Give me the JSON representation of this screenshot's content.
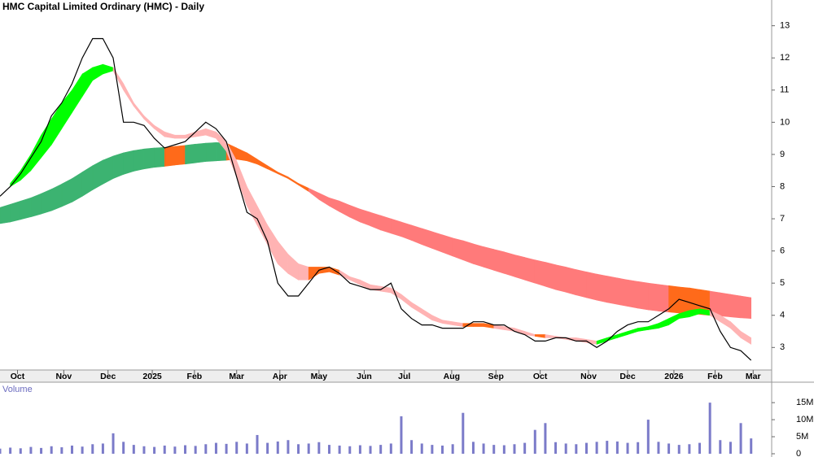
{
  "chart_data": {
    "type": "stock",
    "title": "HMC Capital Limited Ordinary (HMC) - Daily",
    "x": [
      0,
      1,
      2,
      3,
      4,
      5,
      6,
      7,
      8,
      9,
      10,
      11,
      12,
      13,
      14,
      15,
      16,
      17,
      18,
      19,
      20,
      21,
      22,
      23,
      24,
      25,
      26,
      27,
      28,
      29,
      30,
      31,
      32,
      33,
      34,
      35,
      36,
      37,
      38,
      39,
      40,
      41,
      42,
      43,
      44,
      45,
      46,
      47,
      48,
      49,
      50,
      51,
      52,
      53,
      54,
      55,
      56,
      57,
      58,
      59,
      60,
      61,
      62,
      63,
      64,
      65,
      66,
      67,
      68,
      69,
      70,
      71,
      72,
      73
    ],
    "xlim": [
      0,
      75
    ],
    "xticks": [
      {
        "value": 1.7,
        "label": "Oct"
      },
      {
        "value": 6.2,
        "label": "Nov"
      },
      {
        "value": 10.5,
        "label": "Dec"
      },
      {
        "value": 14.8,
        "label": "2025"
      },
      {
        "value": 18.9,
        "label": "Feb"
      },
      {
        "value": 23.0,
        "label": "Mar"
      },
      {
        "value": 27.2,
        "label": "Apr"
      },
      {
        "value": 31.0,
        "label": "May"
      },
      {
        "value": 35.4,
        "label": "Jun"
      },
      {
        "value": 39.3,
        "label": "Jul"
      },
      {
        "value": 43.9,
        "label": "Aug"
      },
      {
        "value": 48.2,
        "label": "Sep"
      },
      {
        "value": 52.5,
        "label": "Oct"
      },
      {
        "value": 57.2,
        "label": "Nov"
      },
      {
        "value": 61.0,
        "label": "Dec"
      },
      {
        "value": 65.5,
        "label": "2026"
      },
      {
        "value": 69.5,
        "label": "Feb"
      },
      {
        "value": 73.2,
        "label": "Mar"
      }
    ],
    "ylim": [
      2.3,
      13.8
    ],
    "yticks": [
      3,
      4,
      5,
      6,
      7,
      8,
      9,
      10,
      11,
      12,
      13
    ],
    "close": {
      "color": "#000000",
      "values": [
        7.7,
        8.0,
        8.4,
        8.9,
        9.4,
        10.2,
        10.6,
        11.2,
        12.0,
        12.6,
        12.6,
        12.0,
        10.0,
        10.0,
        9.9,
        9.5,
        9.2,
        9.3,
        9.4,
        9.7,
        10.0,
        9.8,
        9.4,
        8.3,
        7.2,
        7.0,
        6.3,
        5.0,
        4.6,
        4.6,
        5.0,
        5.4,
        5.5,
        5.3,
        5.0,
        4.9,
        4.8,
        4.8,
        5.0,
        4.2,
        3.9,
        3.7,
        3.7,
        3.6,
        3.6,
        3.6,
        3.8,
        3.8,
        3.7,
        3.7,
        3.5,
        3.4,
        3.2,
        3.2,
        3.3,
        3.3,
        3.2,
        3.2,
        3.0,
        3.2,
        3.5,
        3.7,
        3.8,
        3.8,
        4.0,
        4.2,
        4.5,
        4.4,
        4.3,
        4.2,
        3.5,
        3.0,
        2.9,
        2.6
      ]
    },
    "bands": [
      {
        "upper": [
          7.35,
          7.45,
          7.55,
          7.65,
          7.78,
          7.92,
          8.08,
          8.25,
          8.45,
          8.65,
          8.82,
          8.95,
          9.05,
          9.12,
          9.17,
          9.2,
          9.22,
          9.25,
          9.28,
          9.32,
          9.35,
          9.37,
          9.35,
          9.2,
          9.05,
          8.85,
          8.65,
          8.45,
          8.3,
          8.1,
          7.95,
          7.8,
          7.65,
          7.55,
          7.42,
          7.3,
          7.2,
          7.1,
          7.0,
          6.9,
          6.8,
          6.7,
          6.6,
          6.5,
          6.4,
          6.32,
          6.22,
          6.13,
          6.05,
          5.97,
          5.88,
          5.8,
          5.72,
          5.65,
          5.57,
          5.5,
          5.42,
          5.35,
          5.28,
          5.22,
          5.16,
          5.1,
          5.05,
          5.0,
          4.96,
          4.92,
          4.88,
          4.85,
          4.8,
          4.75,
          4.7,
          4.65,
          4.6,
          4.55
        ],
        "lower": [
          6.85,
          6.9,
          6.98,
          7.06,
          7.15,
          7.25,
          7.38,
          7.52,
          7.7,
          7.9,
          8.08,
          8.25,
          8.38,
          8.48,
          8.55,
          8.6,
          8.63,
          8.67,
          8.7,
          8.74,
          8.78,
          8.8,
          8.82,
          8.85,
          8.8,
          8.7,
          8.55,
          8.4,
          8.25,
          8.05,
          7.85,
          7.6,
          7.4,
          7.22,
          7.05,
          6.9,
          6.78,
          6.65,
          6.55,
          6.45,
          6.33,
          6.2,
          6.08,
          5.96,
          5.84,
          5.72,
          5.6,
          5.5,
          5.4,
          5.3,
          5.2,
          5.1,
          5.0,
          4.9,
          4.8,
          4.72,
          4.63,
          4.55,
          4.47,
          4.4,
          4.34,
          4.28,
          4.22,
          4.17,
          4.13,
          4.1,
          4.07,
          4.05,
          4.03,
          4.0,
          3.98,
          3.95,
          3.92,
          3.9
        ],
        "colors": [
          "#3cb371",
          "#3cb371",
          "#3cb371",
          "#3cb371",
          "#3cb371",
          "#3cb371",
          "#3cb371",
          "#3cb371",
          "#3cb371",
          "#3cb371",
          "#3cb371",
          "#3cb371",
          "#3cb371",
          "#3cb371",
          "#3cb371",
          "#3cb371",
          "#ff6a1a",
          "#ff6a1a",
          "#3cb371",
          "#3cb371",
          "#3cb371",
          "#3cb371",
          "#ff6a1a",
          "#ff6a1a",
          "#ff6a1a",
          "#ff6a1a",
          "#ff6a1a",
          "#ff6a1a",
          "#ff6a1a",
          "#ff6a1a",
          "#ff7a7a",
          "#ff7a7a",
          "#ff7a7a",
          "#ff7a7a",
          "#ff7a7a",
          "#ff7a7a",
          "#ff7a7a",
          "#ff7a7a",
          "#ff7a7a",
          "#ff7a7a",
          "#ff7a7a",
          "#ff7a7a",
          "#ff7a7a",
          "#ff7a7a",
          "#ff7a7a",
          "#ff7a7a",
          "#ff7a7a",
          "#ff7a7a",
          "#ff7a7a",
          "#ff7a7a",
          "#ff7a7a",
          "#ff7a7a",
          "#ff7a7a",
          "#ff7a7a",
          "#ff7a7a",
          "#ff7a7a",
          "#ff7a7a",
          "#ff7a7a",
          "#ff7a7a",
          "#ff7a7a",
          "#ff7a7a",
          "#ff7a7a",
          "#ff7a7a",
          "#ff7a7a",
          "#ff7a7a",
          "#ff6a1a",
          "#ff6a1a",
          "#ff6a1a",
          "#ff6a1a",
          "#ff7a7a",
          "#ff7a7a",
          "#ff7a7a",
          "#ff7a7a",
          "#ff7a7a"
        ]
      },
      {
        "upper": [
          null,
          8.1,
          8.5,
          9.0,
          9.6,
          10.1,
          10.6,
          11.0,
          11.5,
          11.7,
          11.8,
          11.7,
          11.2,
          10.6,
          10.2,
          9.9,
          9.7,
          9.6,
          9.6,
          9.7,
          9.8,
          9.7,
          9.4,
          8.8,
          8.0,
          7.4,
          6.8,
          6.3,
          5.9,
          5.6,
          5.5,
          5.5,
          5.5,
          5.4,
          5.2,
          5.1,
          4.95,
          4.9,
          4.85,
          4.65,
          4.4,
          4.2,
          4.0,
          3.85,
          3.8,
          3.75,
          3.75,
          3.75,
          3.7,
          3.65,
          3.6,
          3.5,
          3.4,
          3.4,
          3.35,
          3.3,
          3.3,
          3.25,
          3.2,
          3.3,
          3.4,
          3.5,
          3.6,
          3.65,
          3.75,
          3.9,
          4.05,
          4.15,
          4.2,
          4.15,
          4.0,
          3.8,
          3.5,
          3.3
        ],
        "lower": [
          null,
          8.0,
          8.2,
          8.5,
          8.9,
          9.3,
          9.8,
          10.3,
          10.8,
          11.3,
          11.5,
          11.6,
          11.0,
          10.5,
          10.1,
          9.8,
          9.55,
          9.5,
          9.5,
          9.55,
          9.6,
          9.5,
          9.1,
          8.3,
          7.4,
          6.8,
          6.2,
          5.6,
          5.3,
          5.1,
          5.1,
          5.3,
          5.35,
          5.25,
          5.1,
          4.95,
          4.8,
          4.75,
          4.7,
          4.5,
          4.25,
          4.05,
          3.85,
          3.75,
          3.7,
          3.65,
          3.65,
          3.65,
          3.6,
          3.55,
          3.5,
          3.4,
          3.35,
          3.3,
          3.3,
          3.25,
          3.2,
          3.15,
          3.1,
          3.2,
          3.3,
          3.4,
          3.5,
          3.55,
          3.6,
          3.7,
          3.9,
          3.95,
          4.05,
          4.0,
          3.8,
          3.6,
          3.3,
          3.1
        ],
        "colors": [
          "#00ff00",
          "#00ff00",
          "#00ff00",
          "#00ff00",
          "#00ff00",
          "#00ff00",
          "#00ff00",
          "#00ff00",
          "#00ff00",
          "#00ff00",
          "#00ff00",
          "#ffb3b3",
          "#ffb3b3",
          "#ffb3b3",
          "#ffb3b3",
          "#ffb3b3",
          "#ffb3b3",
          "#ffb3b3",
          "#ffb3b3",
          "#ffb3b3",
          "#ffb3b3",
          "#ffb3b3",
          "#ffb3b3",
          "#ffb3b3",
          "#ffb3b3",
          "#ffb3b3",
          "#ffb3b3",
          "#ffb3b3",
          "#ffb3b3",
          "#ffb3b3",
          "#ff6a1a",
          "#ff6a1a",
          "#ff6a1a",
          "#ffb3b3",
          "#ffb3b3",
          "#ffb3b3",
          "#ffb3b3",
          "#ffb3b3",
          "#ffb3b3",
          "#ffb3b3",
          "#ffb3b3",
          "#ffb3b3",
          "#ffb3b3",
          "#ffb3b3",
          "#ffb3b3",
          "#ff6a1a",
          "#ff6a1a",
          "#ff6a1a",
          "#ffb3b3",
          "#ffb3b3",
          "#ffb3b3",
          "#ffb3b3",
          "#ff6a1a",
          "#ffb3b3",
          "#ffb3b3",
          "#ffb3b3",
          "#ffb3b3",
          "#ffb3b3",
          "#00ff00",
          "#00ff00",
          "#00ff00",
          "#00ff00",
          "#00ff00",
          "#00ff00",
          "#00ff00",
          "#00ff00",
          "#00ff00",
          "#00ff00",
          "#00ff00",
          "#ffb3b3",
          "#ffb3b3",
          "#ffb3b3",
          "#ffb3b3",
          "#ffb3b3"
        ]
      }
    ],
    "volume": {
      "label": "Volume",
      "color": "#7b7bc9",
      "values": [
        1.5,
        1.8,
        1.6,
        2.0,
        1.7,
        2.2,
        1.9,
        2.4,
        2.1,
        2.8,
        3.0,
        6.0,
        3.5,
        2.6,
        2.2,
        2.0,
        2.4,
        2.1,
        2.5,
        2.3,
        2.8,
        3.2,
        2.9,
        3.5,
        3.0,
        5.5,
        3.2,
        3.6,
        4.0,
        2.8,
        3.0,
        3.4,
        2.6,
        2.4,
        2.2,
        2.5,
        2.3,
        2.6,
        3.0,
        11.0,
        4.0,
        3.0,
        2.6,
        2.4,
        2.8,
        12.0,
        3.5,
        3.0,
        2.6,
        2.5,
        2.8,
        3.2,
        7.0,
        9.0,
        3.4,
        3.0,
        2.8,
        3.2,
        3.5,
        3.8,
        3.6,
        3.2,
        3.4,
        10.0,
        3.5,
        3.0,
        2.6,
        2.8,
        3.2,
        15.0,
        4.0,
        3.5,
        9.0,
        4.5
      ],
      "ylim": [
        0,
        21
      ],
      "yticks": [
        0,
        {
          "value": 5,
          "label": "5M"
        },
        {
          "value": 10,
          "label": "10M"
        },
        {
          "value": 15,
          "label": "15M"
        }
      ]
    }
  }
}
